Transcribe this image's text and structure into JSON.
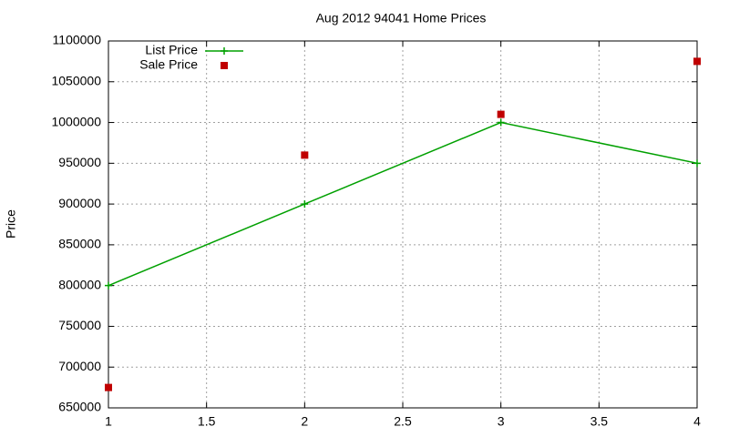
{
  "chart_data": {
    "type": "line",
    "title": "Aug 2012 94041 Home Prices",
    "y_label": "Price",
    "x": [
      1,
      2,
      3,
      4
    ],
    "series": [
      {
        "name": "List Price",
        "color": "#00a000",
        "style": "line",
        "values": [
          800000,
          900000,
          1000000,
          950000
        ]
      },
      {
        "name": "Sale Price",
        "color": "#c00000",
        "style": "points",
        "values": [
          675000,
          960000,
          1010000,
          1075000
        ]
      }
    ],
    "xlim": [
      1,
      4
    ],
    "xticks": [
      1,
      1.5,
      2,
      2.5,
      3,
      3.5,
      4
    ],
    "ylim": [
      650000,
      1100000
    ],
    "yticks": [
      650000,
      700000,
      750000,
      800000,
      850000,
      900000,
      950000,
      1000000,
      1050000,
      1100000
    ],
    "grid": true,
    "legend": "top-left"
  }
}
